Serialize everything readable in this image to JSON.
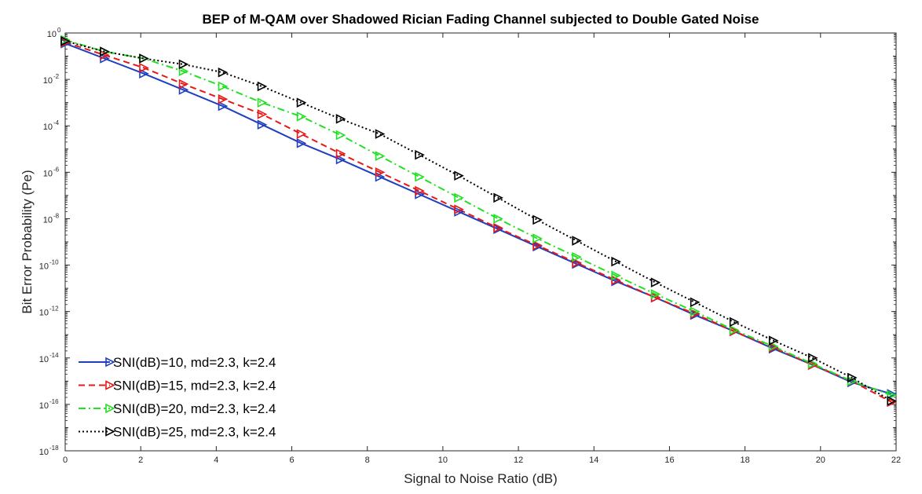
{
  "chart_data": {
    "type": "line",
    "title": "BEP of M-QAM over Shadowed Rician Fading Channel subjected to Double Gated Noise",
    "xlabel": "Signal to Noise Ratio (dB)",
    "ylabel": "Bit Error Probability (Pe)",
    "xlim": [
      0,
      22
    ],
    "ylim_log10": [
      -18,
      0
    ],
    "y_scale": "log",
    "grid": false,
    "legend_position": "bottom-left",
    "x_ticks": [
      0,
      2,
      4,
      6,
      8,
      10,
      12,
      14,
      16,
      18,
      20,
      22
    ],
    "y_tick_exponents": [
      0,
      -2,
      -4,
      -6,
      -8,
      -10,
      -12,
      -14,
      -16,
      -18
    ],
    "y_tick_base": "10",
    "x": [
      0,
      1.04,
      2.08,
      3.13,
      4.17,
      5.21,
      6.25,
      7.29,
      8.33,
      9.38,
      10.42,
      11.46,
      12.5,
      13.54,
      14.58,
      15.63,
      16.67,
      17.71,
      18.75,
      19.79,
      20.83,
      21.88
    ],
    "series": [
      {
        "name": "SNI(dB)=10, md=2.3, k=2.4",
        "color": "#1f3fbf",
        "dash": "solid",
        "marker": "triangle-right",
        "log10_values": [
          -0.45,
          -1.1,
          -1.75,
          -2.45,
          -3.15,
          -3.95,
          -4.75,
          -5.45,
          -6.2,
          -6.95,
          -7.7,
          -8.45,
          -9.2,
          -9.95,
          -10.7,
          -11.4,
          -12.15,
          -12.85,
          -13.6,
          -14.3,
          -15.05,
          -15.55
        ]
      },
      {
        "name": "SNI(dB)=15, md=2.3, k=2.4",
        "color": "#e81818",
        "dash": "dashed",
        "marker": "triangle-right",
        "log10_values": [
          -0.4,
          -0.95,
          -1.5,
          -2.2,
          -2.85,
          -3.5,
          -4.35,
          -5.2,
          -6.0,
          -6.8,
          -7.6,
          -8.4,
          -9.15,
          -9.9,
          -10.65,
          -11.4,
          -12.1,
          -12.85,
          -13.55,
          -14.3,
          -15.0,
          -15.9
        ]
      },
      {
        "name": "SNI(dB)=20, md=2.3, k=2.4",
        "color": "#22e022",
        "dash": "dash-dot",
        "marker": "triangle-right",
        "log10_values": [
          -0.3,
          -0.8,
          -1.1,
          -1.65,
          -2.3,
          -3.0,
          -3.6,
          -4.4,
          -5.3,
          -6.2,
          -7.1,
          -8.0,
          -8.85,
          -9.65,
          -10.45,
          -11.25,
          -12.0,
          -12.8,
          -13.5,
          -14.25,
          -15.0,
          -15.6
        ]
      },
      {
        "name": "SNI(dB)=25, md=2.3, k=2.4",
        "color": "#000000",
        "dash": "dotted",
        "marker": "triangle-right",
        "log10_values": [
          -0.35,
          -0.8,
          -1.1,
          -1.35,
          -1.7,
          -2.3,
          -3.0,
          -3.7,
          -4.35,
          -5.25,
          -6.15,
          -7.1,
          -8.05,
          -8.95,
          -9.85,
          -10.75,
          -11.6,
          -12.45,
          -13.25,
          -14.0,
          -14.85,
          -15.85
        ]
      }
    ]
  }
}
